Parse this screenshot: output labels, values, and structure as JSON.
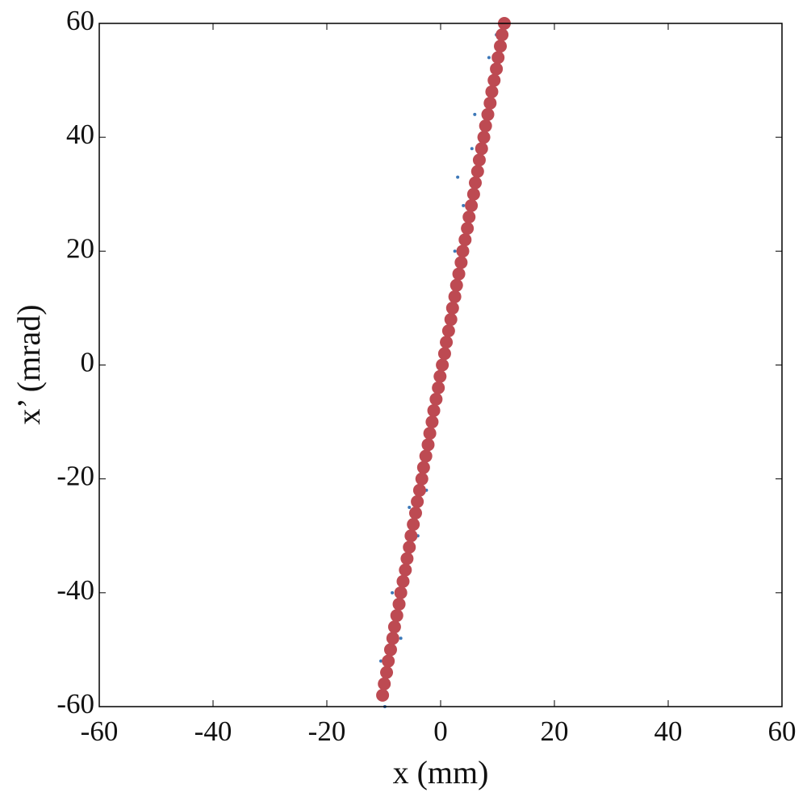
{
  "chart_data": {
    "type": "scatter",
    "xlabel": "x (mm)",
    "ylabel": "x’ (mrad)",
    "xlim": [
      -60,
      60
    ],
    "ylim": [
      -60,
      60
    ],
    "xticks": [
      -60,
      -40,
      -20,
      0,
      20,
      40,
      60
    ],
    "yticks": [
      -60,
      -40,
      -20,
      0,
      20,
      40,
      60
    ],
    "grid": false,
    "series": [
      {
        "color": "#3d78b8",
        "x": [
          -9.8,
          -10.5,
          -8.5,
          -4.0,
          -2.5,
          4.0,
          3.0,
          6.0,
          8.5,
          9.8,
          -7.0,
          -5.5,
          2.5,
          5.5
        ],
        "values": [
          -60,
          -52,
          -40,
          -30,
          -22,
          28,
          33,
          44,
          54,
          58,
          -48,
          -25,
          20,
          38
        ]
      },
      {
        "color": "#bd4a52",
        "x": [
          -10.2,
          -9.9,
          -9.5,
          -9.2,
          -8.8,
          -8.4,
          -8.1,
          -7.7,
          -7.3,
          -7.0,
          -6.6,
          -6.2,
          -5.9,
          -5.5,
          -5.2,
          -4.8,
          -4.4,
          -4.1,
          -3.7,
          -3.3,
          -3.0,
          -2.6,
          -2.2,
          -1.9,
          -1.5,
          -1.2,
          -0.8,
          -0.4,
          -0.1,
          0.3,
          0.7,
          1.0,
          1.4,
          1.8,
          2.1,
          2.5,
          2.8,
          3.2,
          3.6,
          3.9,
          4.3,
          4.7,
          5.0,
          5.4,
          5.8,
          6.1,
          6.5,
          6.8,
          7.2,
          7.6,
          7.9,
          8.3,
          8.7,
          9.0,
          9.4,
          9.8,
          10.1,
          10.5,
          10.8,
          11.2
        ],
        "values": [
          -58,
          -56,
          -54,
          -52,
          -50,
          -48,
          -46,
          -44,
          -42,
          -40,
          -38,
          -36,
          -34,
          -32,
          -30,
          -28,
          -26,
          -24,
          -22,
          -20,
          -18,
          -16,
          -14,
          -12,
          -10,
          -8,
          -6,
          -4,
          -2,
          0,
          2,
          4,
          6,
          8,
          10,
          12,
          14,
          16,
          18,
          20,
          22,
          24,
          26,
          28,
          30,
          32,
          34,
          36,
          38,
          40,
          42,
          44,
          46,
          48,
          50,
          52,
          54,
          56,
          58,
          60
        ]
      }
    ]
  }
}
